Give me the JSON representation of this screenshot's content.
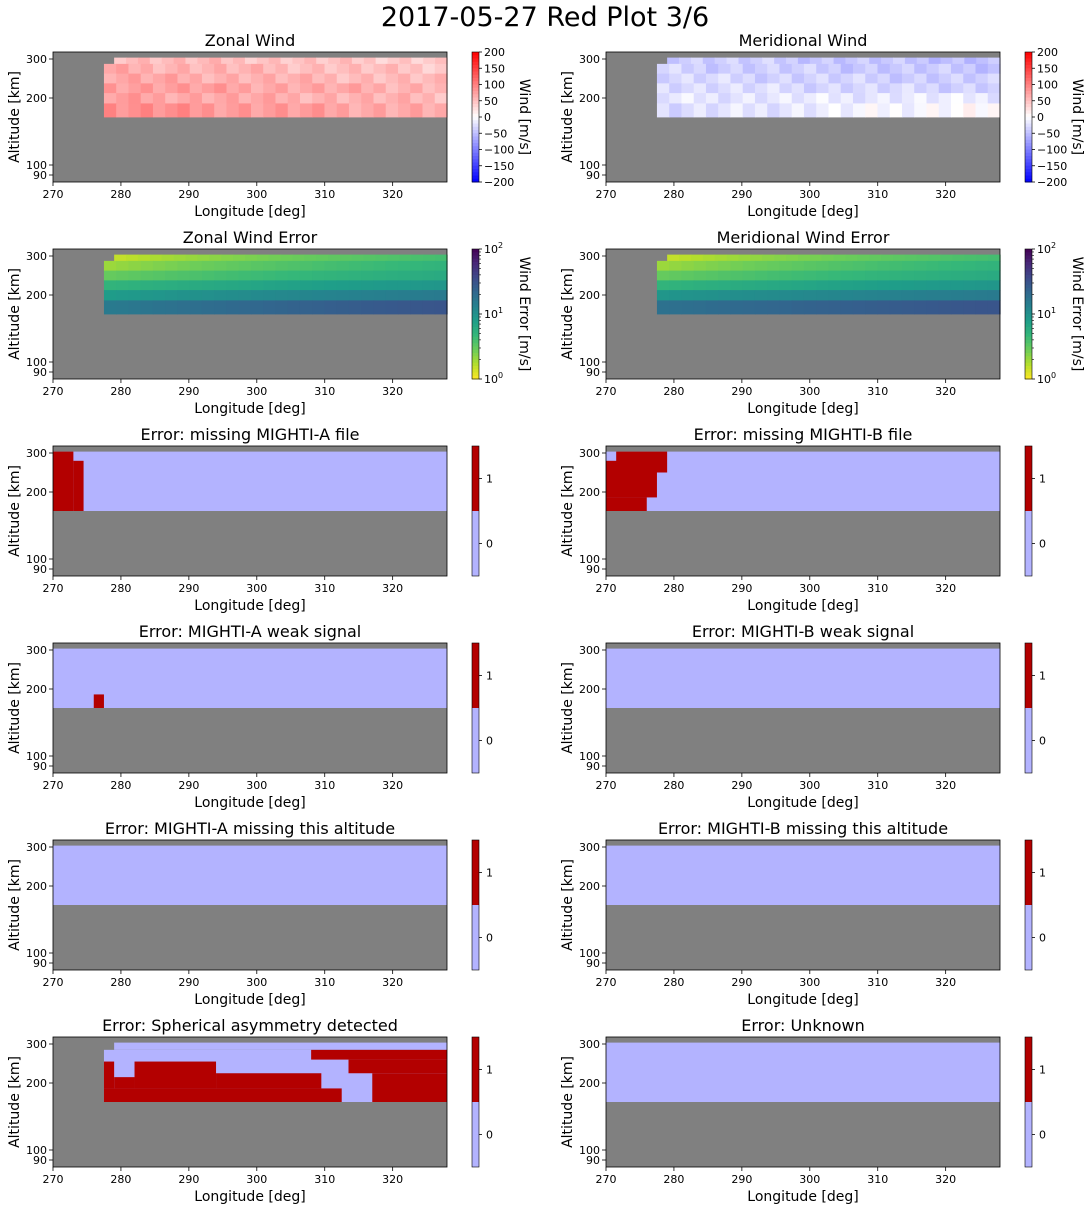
{
  "figure": {
    "title": "2017-05-27 Red Plot 3/6",
    "background": "#ffffff",
    "no_data_color": "#808080"
  },
  "chart_data": [
    {
      "type": "heatmap",
      "title": "Zonal Wind",
      "xlabel": "Longitude [deg]",
      "ylabel": "Altitude [km]",
      "xlim": [
        270,
        328
      ],
      "ylim": [
        85,
        310
      ],
      "xticks": [
        270,
        280,
        290,
        300,
        310,
        320
      ],
      "yticks": [
        90,
        100,
        200,
        300
      ],
      "colorbar": {
        "kind": "diverging",
        "label": "Wind [m/s]",
        "range": [
          -200,
          200
        ],
        "ticks": [
          "200",
          "150",
          "100",
          "50",
          "0",
          "−50",
          "−100",
          "−150",
          "−200"
        ]
      },
      "data_extent": {
        "altitude_km": [
          165,
          302
        ]
      },
      "field": {
        "description_values_m_s": "mostly eastward 30-110",
        "lon_start": 277.5,
        "top_row_start": 279,
        "rows_altitude_km": [
          300,
          275,
          250,
          225,
          200,
          180
        ],
        "row_values": [
          [
            55,
            40
          ],
          [
            65,
            45
          ],
          [
            70,
            50
          ],
          [
            80,
            60
          ],
          [
            75,
            55
          ],
          [
            90,
            65
          ]
        ]
      }
    },
    {
      "type": "heatmap",
      "title": "Meridional Wind",
      "xlabel": "Longitude [deg]",
      "ylabel": "Altitude [km]",
      "xlim": [
        270,
        328
      ],
      "ylim": [
        85,
        310
      ],
      "xticks": [
        270,
        280,
        290,
        300,
        310,
        320
      ],
      "yticks": [
        90,
        100,
        200,
        300
      ],
      "colorbar": {
        "kind": "diverging",
        "label": "Wind [m/s]",
        "range": [
          -200,
          200
        ],
        "ticks": [
          "200",
          "150",
          "100",
          "50",
          "0",
          "−50",
          "−100",
          "−150",
          "−200"
        ]
      },
      "data_extent": {
        "altitude_km": [
          165,
          302
        ]
      },
      "field": {
        "lon_start": 277.5,
        "top_row_start": 279,
        "rows_altitude_km": [
          300,
          275,
          250,
          225,
          200,
          180
        ],
        "row_values": [
          [
            -35,
            -50
          ],
          [
            -35,
            -45
          ],
          [
            -30,
            -40
          ],
          [
            -25,
            -35
          ],
          [
            -20,
            -15
          ],
          [
            -30,
            5
          ]
        ]
      }
    },
    {
      "type": "heatmap",
      "title": "Zonal Wind Error",
      "xlabel": "Longitude [deg]",
      "ylabel": "Altitude [km]",
      "xlim": [
        270,
        328
      ],
      "ylim": [
        85,
        310
      ],
      "xticks": [
        270,
        280,
        290,
        300,
        310,
        320
      ],
      "yticks": [
        90,
        100,
        200,
        300
      ],
      "colorbar": {
        "kind": "log",
        "label": "Wind Error [m/s]",
        "range": [
          1,
          100
        ],
        "ticks": [
          "10^2",
          "10^1",
          "10^0"
        ]
      },
      "data_extent": {
        "altitude_km": [
          165,
          302
        ]
      },
      "field": {
        "lon_start": 277.5,
        "top_row_start": 279,
        "rows_altitude_km": [
          300,
          275,
          250,
          225,
          200,
          180
        ],
        "row_values": [
          [
            1.5,
            4
          ],
          [
            2,
            5
          ],
          [
            3,
            6
          ],
          [
            5,
            9
          ],
          [
            8,
            15
          ],
          [
            15,
            30
          ]
        ]
      }
    },
    {
      "type": "heatmap",
      "title": "Meridional Wind Error",
      "xlabel": "Longitude [deg]",
      "ylabel": "Altitude [km]",
      "xlim": [
        270,
        328
      ],
      "ylim": [
        85,
        310
      ],
      "xticks": [
        270,
        280,
        290,
        300,
        310,
        320
      ],
      "yticks": [
        90,
        100,
        200,
        300
      ],
      "colorbar": {
        "kind": "log",
        "label": "Wind Error [m/s]",
        "range": [
          1,
          100
        ],
        "ticks": [
          "10^2",
          "10^1",
          "10^0"
        ]
      },
      "data_extent": {
        "altitude_km": [
          165,
          302
        ]
      },
      "field": {
        "lon_start": 277.5,
        "top_row_start": 279,
        "rows_altitude_km": [
          300,
          275,
          250,
          225,
          200,
          180
        ],
        "row_values": [
          [
            1.5,
            4
          ],
          [
            2,
            5
          ],
          [
            3,
            6
          ],
          [
            5,
            9
          ],
          [
            9,
            15
          ],
          [
            18,
            30
          ]
        ]
      }
    },
    {
      "type": "heatmap",
      "title": "Error: missing MIGHTI-A file",
      "xlabel": "Longitude [deg]",
      "ylabel": "Altitude [km]",
      "xlim": [
        270,
        328
      ],
      "ylim": [
        85,
        310
      ],
      "xticks": [
        270,
        280,
        290,
        300,
        310,
        320
      ],
      "yticks": [
        90,
        100,
        200,
        300
      ],
      "colorbar": {
        "kind": "binary",
        "label": "",
        "range": [
          -0.5,
          1.5
        ],
        "ticks": [
          "1",
          "0"
        ]
      },
      "data_extent": {
        "altitude_km": [
          165,
          302
        ]
      },
      "flag_regions": [
        {
          "lon": [
            270,
            273
          ],
          "alt_km": [
            165,
            302
          ]
        },
        {
          "lon": [
            273,
            274.5
          ],
          "alt_km": [
            165,
            280
          ]
        }
      ]
    },
    {
      "type": "heatmap",
      "title": "Error: missing MIGHTI-B file",
      "xlabel": "Longitude [deg]",
      "ylabel": "Altitude [km]",
      "xlim": [
        270,
        328
      ],
      "ylim": [
        85,
        310
      ],
      "xticks": [
        270,
        280,
        290,
        300,
        310,
        320
      ],
      "yticks": [
        90,
        100,
        200,
        300
      ],
      "colorbar": {
        "kind": "binary",
        "label": "",
        "range": [
          -0.5,
          1.5
        ],
        "ticks": [
          "1",
          "0"
        ]
      },
      "data_extent": {
        "altitude_km": [
          165,
          302
        ]
      },
      "flag_regions": [
        {
          "lon": [
            271.5,
            279
          ],
          "alt_km": [
            250,
            302
          ]
        },
        {
          "lon": [
            270,
            277.5
          ],
          "alt_km": [
            190,
            280
          ]
        },
        {
          "lon": [
            270,
            276
          ],
          "alt_km": [
            165,
            190
          ]
        }
      ]
    },
    {
      "type": "heatmap",
      "title": "Error: MIGHTI-A weak signal",
      "xlabel": "Longitude [deg]",
      "ylabel": "Altitude [km]",
      "xlim": [
        270,
        328
      ],
      "ylim": [
        85,
        310
      ],
      "xticks": [
        270,
        280,
        290,
        300,
        310,
        320
      ],
      "yticks": [
        90,
        100,
        200,
        300
      ],
      "colorbar": {
        "kind": "binary",
        "label": "",
        "range": [
          -0.5,
          1.5
        ],
        "ticks": [
          "1",
          "0"
        ]
      },
      "data_extent": {
        "altitude_km": [
          165,
          302
        ]
      },
      "flag_regions": [
        {
          "lon": [
            276,
            277.5
          ],
          "alt_km": [
            165,
            190
          ]
        }
      ]
    },
    {
      "type": "heatmap",
      "title": "Error: MIGHTI-B weak signal",
      "xlabel": "Longitude [deg]",
      "ylabel": "Altitude [km]",
      "xlim": [
        270,
        328
      ],
      "ylim": [
        85,
        310
      ],
      "xticks": [
        270,
        280,
        290,
        300,
        310,
        320
      ],
      "yticks": [
        90,
        100,
        200,
        300
      ],
      "colorbar": {
        "kind": "binary",
        "label": "",
        "range": [
          -0.5,
          1.5
        ],
        "ticks": [
          "1",
          "0"
        ]
      },
      "data_extent": {
        "altitude_km": [
          165,
          302
        ]
      },
      "flag_regions": []
    },
    {
      "type": "heatmap",
      "title": "Error: MIGHTI-A missing this altitude",
      "xlabel": "Longitude [deg]",
      "ylabel": "Altitude [km]",
      "xlim": [
        270,
        328
      ],
      "ylim": [
        85,
        310
      ],
      "xticks": [
        270,
        280,
        290,
        300,
        310,
        320
      ],
      "yticks": [
        90,
        100,
        200,
        300
      ],
      "colorbar": {
        "kind": "binary",
        "label": "",
        "range": [
          -0.5,
          1.5
        ],
        "ticks": [
          "1",
          "0"
        ]
      },
      "data_extent": {
        "altitude_km": [
          165,
          302
        ]
      },
      "flag_regions": []
    },
    {
      "type": "heatmap",
      "title": "Error: MIGHTI-B missing this altitude",
      "xlabel": "Longitude [deg]",
      "ylabel": "Altitude [km]",
      "xlim": [
        270,
        328
      ],
      "ylim": [
        85,
        310
      ],
      "xticks": [
        270,
        280,
        290,
        300,
        310,
        320
      ],
      "yticks": [
        90,
        100,
        200,
        300
      ],
      "colorbar": {
        "kind": "binary",
        "label": "",
        "range": [
          -0.5,
          1.5
        ],
        "ticks": [
          "1",
          "0"
        ]
      },
      "data_extent": {
        "altitude_km": [
          165,
          302
        ]
      },
      "flag_regions": []
    },
    {
      "type": "heatmap",
      "title": "Error: Spherical asymmetry detected",
      "xlabel": "Longitude [deg]",
      "ylabel": "Altitude [km]",
      "xlim": [
        270,
        328
      ],
      "ylim": [
        85,
        310
      ],
      "xticks": [
        270,
        280,
        290,
        300,
        310,
        320
      ],
      "yticks": [
        90,
        100,
        200,
        300
      ],
      "colorbar": {
        "kind": "binary",
        "label": "",
        "range": [
          -0.5,
          1.5
        ],
        "ticks": [
          "1",
          "0"
        ]
      },
      "data_extent": {
        "altitude_km": [
          165,
          302
        ],
        "lon_start": 277.5,
        "top_row_start": 279
      },
      "flag_regions": [
        {
          "lon": [
            277.5,
            279
          ],
          "alt_km": [
            190,
            255
          ]
        },
        {
          "lon": [
            277.5,
            312.5
          ],
          "alt_km": [
            165,
            190
          ]
        },
        {
          "lon": [
            279,
            282
          ],
          "alt_km": [
            190,
            215
          ]
        },
        {
          "lon": [
            282,
            294
          ],
          "alt_km": [
            190,
            255
          ]
        },
        {
          "lon": [
            294,
            309.5
          ],
          "alt_km": [
            190,
            225
          ]
        },
        {
          "lon": [
            308,
            328
          ],
          "alt_km": [
            260,
            285
          ]
        },
        {
          "lon": [
            313.5,
            328
          ],
          "alt_km": [
            225,
            260
          ]
        },
        {
          "lon": [
            317,
            328
          ],
          "alt_km": [
            165,
            225
          ]
        }
      ]
    },
    {
      "type": "heatmap",
      "title": "Error: Unknown",
      "xlabel": "Longitude [deg]",
      "ylabel": "Altitude [km]",
      "xlim": [
        270,
        328
      ],
      "ylim": [
        85,
        310
      ],
      "xticks": [
        270,
        280,
        290,
        300,
        310,
        320
      ],
      "yticks": [
        90,
        100,
        200,
        300
      ],
      "colorbar": {
        "kind": "binary",
        "label": "",
        "range": [
          -0.5,
          1.5
        ],
        "ticks": [
          "1",
          "0"
        ]
      },
      "data_extent": {
        "altitude_km": [
          165,
          302
        ]
      },
      "flag_regions": []
    }
  ]
}
